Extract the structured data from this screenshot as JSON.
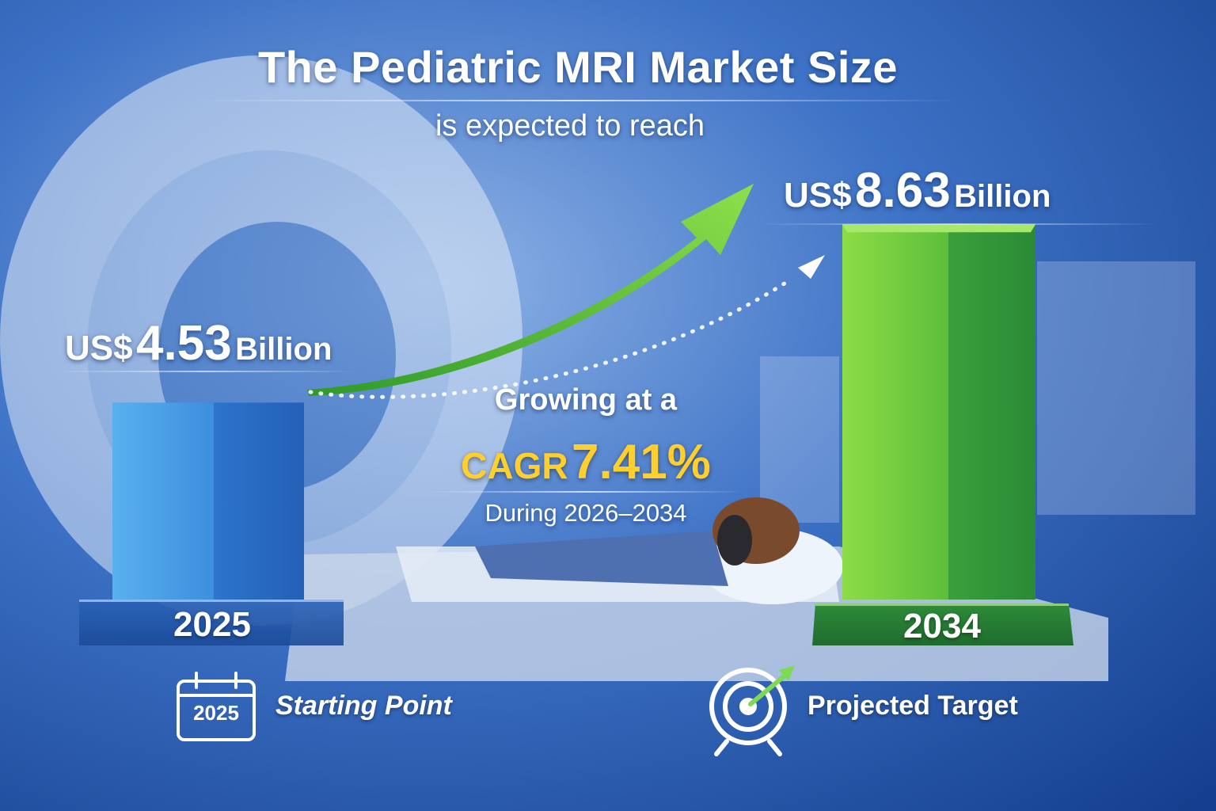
{
  "title": "The Pediatric MRI Market Size",
  "subtitle": "is expected to reach",
  "start": {
    "currency": "US$",
    "value": "4.53",
    "unit": "Billion",
    "year": "2025"
  },
  "end": {
    "currency": "US$",
    "value": "8.63",
    "unit": "Billion",
    "year": "2034"
  },
  "growth": {
    "intro": "Growing at a",
    "label": "CAGR",
    "rate": "7.41%",
    "period": "During 2026–2034"
  },
  "legend": {
    "start_label": "Starting Point",
    "start_icon": "calendar-icon",
    "calendar_year": "2025",
    "end_label": "Projected Target",
    "end_icon": "target-icon"
  },
  "colors": {
    "start_bar": "#3f93e3",
    "end_bar": "#4caf3c",
    "cagr": "#ffcf2e",
    "arrow": "#6fd43c"
  },
  "chart_data": {
    "type": "bar",
    "categories": [
      "2025",
      "2034"
    ],
    "values": [
      4.53,
      8.63
    ],
    "title": "The Pediatric MRI Market Size",
    "xlabel": "",
    "ylabel": "",
    "ylim": [
      0,
      9.2
    ],
    "series": [
      {
        "values": [
          4.53,
          8.63
        ]
      }
    ]
  }
}
